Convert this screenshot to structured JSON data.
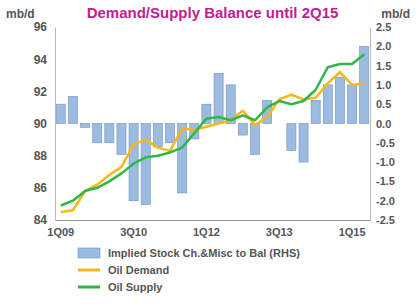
{
  "chart_data": {
    "type": "bar",
    "title": "Demand/Supply Balance until 2Q15",
    "y_label": "mb/d",
    "y2_label": "mb/d",
    "categories": [
      "1Q09",
      null,
      null,
      null,
      null,
      null,
      "3Q10",
      null,
      null,
      null,
      null,
      null,
      "1Q12",
      null,
      null,
      null,
      null,
      null,
      "3Q13",
      null,
      null,
      null,
      null,
      null,
      "1Q15",
      null
    ],
    "series": [
      {
        "name": "Implied Stock Ch.&Misc to Bal (RHS)",
        "type": "bar",
        "axis": "y2",
        "color": "#9bbbe0",
        "values": [
          0.5,
          0.7,
          -0.1,
          -0.5,
          -0.5,
          -0.8,
          -2.0,
          -2.1,
          -0.6,
          -0.5,
          -1.8,
          -0.4,
          0.5,
          1.3,
          1.0,
          -0.3,
          -0.8,
          0.6,
          0.0,
          -0.7,
          -1.0,
          0.6,
          1.0,
          1.2,
          1.0,
          2.0
        ]
      },
      {
        "name": "Oil Demand",
        "type": "line",
        "color": "#f7b718",
        "values": [
          84.5,
          84.6,
          85.8,
          86.2,
          86.8,
          87.3,
          88.7,
          89.0,
          88.5,
          88.3,
          89.7,
          89.6,
          89.8,
          90.0,
          90.2,
          90.8,
          89.9,
          90.4,
          91.5,
          91.8,
          91.5,
          91.6,
          92.5,
          93.2,
          92.4,
          92.5
        ]
      },
      {
        "name": "Oil Supply",
        "type": "line",
        "color": "#2eb84b",
        "values": [
          84.9,
          85.2,
          85.8,
          86.0,
          86.4,
          86.9,
          87.5,
          87.9,
          88.0,
          88.2,
          88.5,
          89.4,
          90.3,
          90.4,
          90.2,
          90.5,
          90.2,
          91.0,
          91.4,
          91.2,
          91.4,
          92.1,
          93.5,
          93.7,
          93.7,
          94.3
        ]
      }
    ],
    "ylim": [
      84,
      96
    ],
    "yticks": [
      84,
      86,
      88,
      90,
      92,
      94,
      96
    ],
    "y2lim": [
      -2.5,
      2.5
    ],
    "y2ticks": [
      {
        "value": -2.5,
        "label": "-2.5"
      },
      {
        "value": -2,
        "label": "-2.0"
      },
      {
        "value": -1.5,
        "label": "-1.5"
      },
      {
        "value": -1,
        "label": "-1.0"
      },
      {
        "value": -0.5,
        "label": "-0.5"
      },
      {
        "value": 0,
        "label": "0.0"
      },
      {
        "value": 0.5,
        "label": "0.5"
      },
      {
        "value": 1,
        "label": "1.0"
      },
      {
        "value": 1.5,
        "label": "1.5"
      },
      {
        "value": 2,
        "label": "2.0"
      },
      2.5
    ],
    "legend": "bottom"
  }
}
